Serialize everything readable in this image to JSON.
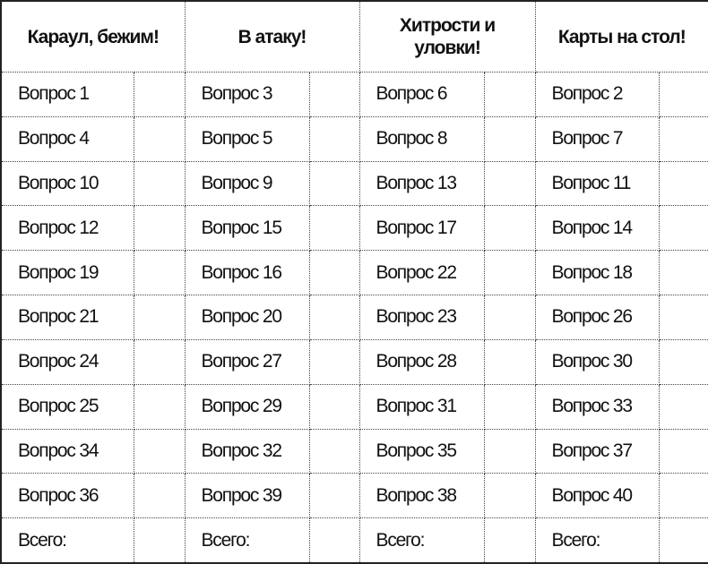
{
  "columns": [
    {
      "title": "Караул, бежим!",
      "questions": [
        "Вопрос 1",
        "Вопрос 4",
        "Вопрос 10",
        "Вопрос 12",
        "Вопрос 19",
        "Вопрос 21",
        "Вопрос 24",
        "Вопрос 25",
        "Вопрос 34",
        "Вопрос 36"
      ]
    },
    {
      "title": "В атаку!",
      "questions": [
        "Вопрос 3",
        "Вопрос 5",
        "Вопрос 9",
        "Вопрос 15",
        "Вопрос 16",
        "Вопрос 20",
        "Вопрос 27",
        "Вопрос 29",
        "Вопрос 32",
        "Вопрос 39"
      ]
    },
    {
      "title": "Хитрости и уловки!",
      "questions": [
        "Вопрос 6",
        "Вопрос 8",
        "Вопрос 13",
        "Вопрос 17",
        "Вопрос 22",
        "Вопрос 23",
        "Вопрос 28",
        "Вопрос 31",
        "Вопрос 35",
        "Вопрос 38"
      ]
    },
    {
      "title": "Карты на стол!",
      "questions": [
        "Вопрос 2",
        "Вопрос 7",
        "Вопрос 11",
        "Вопрос 14",
        "Вопрос 18",
        "Вопрос 26",
        "Вопрос 30",
        "Вопрос 33",
        "Вопрос 37",
        "Вопрос 40"
      ]
    }
  ],
  "total_label": "Всего:"
}
